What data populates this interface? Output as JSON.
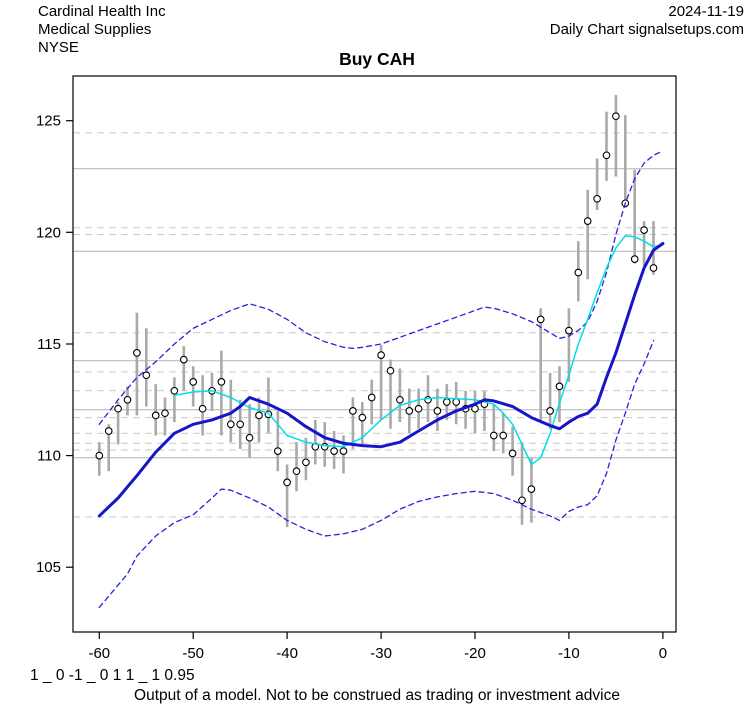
{
  "header": {
    "company": "Cardinal Health Inc",
    "industry": "Medical Supplies",
    "exchange": "NYSE",
    "date": "2024-11-19",
    "chart_info": "Daily Chart signalsetups.com"
  },
  "title": "Buy CAH",
  "footer": {
    "model_output": "1 _ 0 -1 _ 0 1 1 _ 1 0.95",
    "disclaimer": "Output of a model. Not to be construed as trading or investment advice"
  },
  "chart_data": {
    "type": "line",
    "title": "Buy CAH",
    "xlabel": "",
    "ylabel": "",
    "xlim": [
      -62.8,
      1.4
    ],
    "ylim": [
      102.1,
      127.0
    ],
    "x_ticks": [
      -60,
      -50,
      -40,
      -30,
      -20,
      -10,
      0
    ],
    "y_ticks": [
      105,
      110,
      115,
      120,
      125
    ],
    "grid": {
      "solid_levels": [
        122.85,
        119.15,
        114.25,
        112.05,
        109.9
      ],
      "dashed_levels": [
        124.45,
        120.2,
        119.9,
        115.5,
        113.75,
        112.9,
        111.7,
        111.0,
        110.55,
        110.25,
        107.25
      ]
    },
    "style": {
      "bar_color": "#a9a9a9",
      "marker": "open-circle",
      "marker_color": "#000000",
      "slow_ma_color": "#1616c8",
      "fast_ma_color": "#00dfe8",
      "band_color": "#2323dd",
      "grid_solid_color": "#b3b3b3",
      "grid_dashed_color": "#c9c9c9",
      "axis_color": "#000000"
    },
    "price_bars_columns": [
      "t",
      "close",
      "low",
      "high"
    ],
    "price_bars": [
      [
        -60,
        110.0,
        109.1,
        110.6
      ],
      [
        -59,
        111.1,
        109.3,
        111.4
      ],
      [
        -58,
        112.1,
        110.5,
        112.4
      ],
      [
        -57,
        112.5,
        111.8,
        113.1
      ],
      [
        -56,
        114.6,
        111.8,
        116.4
      ],
      [
        -55,
        113.6,
        112.2,
        115.7
      ],
      [
        -54,
        111.8,
        110.9,
        113.2
      ],
      [
        -53,
        111.9,
        110.9,
        112.6
      ],
      [
        -52,
        112.9,
        111.5,
        113.5
      ],
      [
        -51,
        114.3,
        112.9,
        114.9
      ],
      [
        -50,
        113.3,
        112.2,
        114.0
      ],
      [
        -49,
        112.1,
        110.9,
        113.6
      ],
      [
        -48,
        112.9,
        112.0,
        113.7
      ],
      [
        -47,
        113.3,
        110.9,
        114.7
      ],
      [
        -46,
        111.4,
        110.6,
        113.4
      ],
      [
        -45,
        111.4,
        110.3,
        112.5
      ],
      [
        -44,
        110.8,
        109.9,
        112.3
      ],
      [
        -43,
        111.8,
        110.6,
        112.6
      ],
      [
        -42,
        111.85,
        111.0,
        113.5
      ],
      [
        -41,
        110.2,
        109.3,
        112.0
      ],
      [
        -40,
        108.8,
        106.8,
        109.6
      ],
      [
        -39,
        109.3,
        108.4,
        110.6
      ],
      [
        -38,
        109.7,
        108.9,
        110.8
      ],
      [
        -37,
        110.4,
        109.6,
        111.6
      ],
      [
        -36,
        110.4,
        109.5,
        111.5
      ],
      [
        -35,
        110.2,
        109.4,
        111.1
      ],
      [
        -34,
        110.2,
        109.2,
        110.9
      ],
      [
        -33,
        112.0,
        110.3,
        112.6
      ],
      [
        -32,
        111.7,
        110.5,
        112.4
      ],
      [
        -31,
        112.6,
        111.4,
        113.4
      ],
      [
        -30,
        114.5,
        111.6,
        114.95
      ],
      [
        -29,
        113.8,
        111.2,
        114.3
      ],
      [
        -28,
        112.5,
        111.5,
        113.9
      ],
      [
        -27,
        112.0,
        111.0,
        113.0
      ],
      [
        -26,
        112.1,
        111.2,
        113.0
      ],
      [
        -25,
        112.5,
        111.5,
        113.6
      ],
      [
        -24,
        112.0,
        111.1,
        113.0
      ],
      [
        -23,
        112.4,
        111.6,
        113.2
      ],
      [
        -22,
        112.4,
        111.4,
        113.3
      ],
      [
        -21,
        112.1,
        111.2,
        112.9
      ],
      [
        -20,
        112.1,
        111.0,
        112.9
      ],
      [
        -19,
        112.3,
        111.1,
        112.9
      ],
      [
        -18,
        110.9,
        110.2,
        112.3
      ],
      [
        -17,
        110.9,
        110.1,
        111.9
      ],
      [
        -16,
        110.1,
        109.1,
        111.3
      ],
      [
        -15,
        108.0,
        106.9,
        110.6
      ],
      [
        -14,
        108.5,
        107.0,
        109.9
      ],
      [
        -13,
        116.1,
        111.5,
        116.6
      ],
      [
        -12,
        112.0,
        111.2,
        113.7
      ],
      [
        -11,
        113.1,
        111.5,
        114.0
      ],
      [
        -10,
        115.6,
        113.3,
        116.6
      ],
      [
        -9,
        118.2,
        116.9,
        119.6
      ],
      [
        -8,
        120.5,
        117.9,
        121.9
      ],
      [
        -7,
        121.5,
        121.0,
        123.3
      ],
      [
        -6,
        123.45,
        122.3,
        125.4
      ],
      [
        -5,
        125.2,
        122.5,
        126.15
      ],
      [
        -4,
        121.3,
        121.1,
        125.25
      ],
      [
        -3,
        118.8,
        118.6,
        122.8
      ],
      [
        -2,
        120.1,
        118.5,
        120.5
      ],
      [
        -1,
        118.4,
        118.1,
        120.5
      ]
    ],
    "series": [
      {
        "name": "upper-band",
        "style": "dashed",
        "width": 1.3,
        "color": "#2323dd",
        "points": [
          [
            -60,
            111.4
          ],
          [
            -58,
            112.5
          ],
          [
            -56,
            113.5
          ],
          [
            -54,
            114.2
          ],
          [
            -52,
            115.0
          ],
          [
            -50,
            115.7
          ],
          [
            -48,
            116.1
          ],
          [
            -46,
            116.5
          ],
          [
            -44,
            116.8
          ],
          [
            -42,
            116.55
          ],
          [
            -40,
            116.1
          ],
          [
            -38,
            115.5
          ],
          [
            -36,
            115.1
          ],
          [
            -34,
            114.85
          ],
          [
            -33,
            114.8
          ],
          [
            -32,
            114.85
          ],
          [
            -30,
            115.0
          ],
          [
            -28,
            115.3
          ],
          [
            -26,
            115.6
          ],
          [
            -24,
            115.9
          ],
          [
            -22,
            116.2
          ],
          [
            -20,
            116.5
          ],
          [
            -19,
            116.65
          ],
          [
            -18,
            116.6
          ],
          [
            -16,
            116.35
          ],
          [
            -14,
            116.0
          ],
          [
            -12,
            115.5
          ],
          [
            -11,
            115.25
          ],
          [
            -10,
            115.35
          ],
          [
            -9,
            115.6
          ],
          [
            -8,
            116.0
          ],
          [
            -7,
            116.9
          ],
          [
            -6,
            118.2
          ],
          [
            -5,
            119.9
          ],
          [
            -4,
            121.3
          ],
          [
            -3,
            122.4
          ],
          [
            -2,
            123.1
          ],
          [
            -1,
            123.45
          ],
          [
            0,
            123.65
          ]
        ]
      },
      {
        "name": "lower-band",
        "style": "dashed",
        "width": 1.3,
        "color": "#2323dd",
        "points": [
          [
            -60,
            103.2
          ],
          [
            -58,
            104.2
          ],
          [
            -57,
            104.7
          ],
          [
            -56,
            105.5
          ],
          [
            -54,
            106.4
          ],
          [
            -52,
            107.0
          ],
          [
            -50,
            107.35
          ],
          [
            -48,
            108.1
          ],
          [
            -47,
            108.5
          ],
          [
            -46,
            108.45
          ],
          [
            -44,
            108.1
          ],
          [
            -42,
            107.7
          ],
          [
            -40,
            107.1
          ],
          [
            -38,
            106.7
          ],
          [
            -36,
            106.4
          ],
          [
            -34,
            106.5
          ],
          [
            -32,
            106.7
          ],
          [
            -30,
            107.1
          ],
          [
            -28,
            107.6
          ],
          [
            -26,
            107.95
          ],
          [
            -24,
            108.15
          ],
          [
            -22,
            108.3
          ],
          [
            -20,
            108.4
          ],
          [
            -18,
            108.3
          ],
          [
            -16,
            108.0
          ],
          [
            -14,
            107.6
          ],
          [
            -12,
            107.3
          ],
          [
            -11,
            107.1
          ],
          [
            -10,
            107.5
          ],
          [
            -9,
            107.7
          ],
          [
            -8,
            107.8
          ],
          [
            -7,
            108.2
          ],
          [
            -6,
            109.2
          ],
          [
            -5,
            110.7
          ],
          [
            -4,
            111.9
          ],
          [
            -3,
            113.2
          ],
          [
            -2,
            114.1
          ],
          [
            -1,
            115.15
          ]
        ]
      },
      {
        "name": "fast-ma",
        "style": "solid",
        "width": 1.5,
        "color": "#00dfe8",
        "points": [
          [
            -52,
            112.7
          ],
          [
            -50,
            112.85
          ],
          [
            -48,
            112.9
          ],
          [
            -46,
            112.6
          ],
          [
            -44,
            112.15
          ],
          [
            -42,
            111.9
          ],
          [
            -41,
            111.4
          ],
          [
            -40,
            110.9
          ],
          [
            -38,
            110.6
          ],
          [
            -36,
            110.45
          ],
          [
            -34,
            110.4
          ],
          [
            -32,
            110.8
          ],
          [
            -30,
            111.6
          ],
          [
            -28,
            112.25
          ],
          [
            -26,
            112.5
          ],
          [
            -24,
            112.6
          ],
          [
            -22,
            112.55
          ],
          [
            -20,
            112.5
          ],
          [
            -18,
            112.3
          ],
          [
            -17,
            111.9
          ],
          [
            -16,
            111.4
          ],
          [
            -15,
            110.5
          ],
          [
            -14,
            109.6
          ],
          [
            -13,
            109.9
          ],
          [
            -12,
            111.0
          ],
          [
            -11,
            112.35
          ],
          [
            -10,
            113.6
          ],
          [
            -9,
            115.0
          ],
          [
            -8,
            116.1
          ],
          [
            -7,
            117.3
          ],
          [
            -6,
            118.4
          ],
          [
            -5,
            119.3
          ],
          [
            -4,
            119.85
          ],
          [
            -3,
            119.8
          ],
          [
            -2,
            119.6
          ],
          [
            -1,
            119.35
          ],
          [
            0,
            119.45
          ]
        ]
      },
      {
        "name": "slow-ma",
        "style": "solid",
        "width": 3,
        "color": "#1616c8",
        "points": [
          [
            -60,
            107.3
          ],
          [
            -58,
            108.1
          ],
          [
            -56,
            109.1
          ],
          [
            -54,
            110.15
          ],
          [
            -52,
            111.0
          ],
          [
            -50,
            111.4
          ],
          [
            -48,
            111.6
          ],
          [
            -46,
            111.9
          ],
          [
            -45,
            112.2
          ],
          [
            -44,
            112.6
          ],
          [
            -43,
            112.45
          ],
          [
            -42,
            112.3
          ],
          [
            -40,
            111.9
          ],
          [
            -38,
            111.3
          ],
          [
            -36,
            110.8
          ],
          [
            -34,
            110.55
          ],
          [
            -32,
            110.45
          ],
          [
            -30,
            110.4
          ],
          [
            -28,
            110.6
          ],
          [
            -26,
            111.1
          ],
          [
            -24,
            111.6
          ],
          [
            -22,
            112.0
          ],
          [
            -20,
            112.3
          ],
          [
            -19,
            112.5
          ],
          [
            -18,
            112.45
          ],
          [
            -16,
            112.2
          ],
          [
            -14,
            111.7
          ],
          [
            -12,
            111.35
          ],
          [
            -11,
            111.2
          ],
          [
            -10,
            111.5
          ],
          [
            -9,
            111.75
          ],
          [
            -8,
            111.9
          ],
          [
            -7,
            112.3
          ],
          [
            -6,
            113.5
          ],
          [
            -5,
            114.6
          ],
          [
            -4,
            115.9
          ],
          [
            -3,
            117.2
          ],
          [
            -2,
            118.4
          ],
          [
            -1,
            119.2
          ],
          [
            0,
            119.5
          ]
        ]
      }
    ],
    "legend": "none"
  }
}
